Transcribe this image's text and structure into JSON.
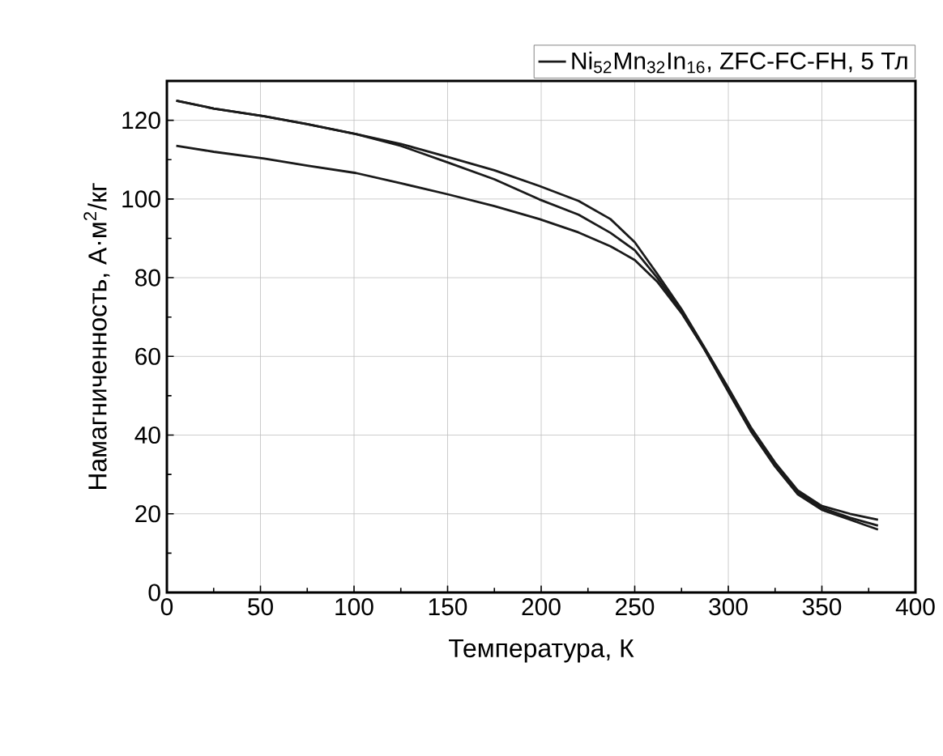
{
  "chart_data": {
    "type": "line",
    "xlabel": "Температура, К",
    "ylabel": "Намагниченность, А·м$^{2}$/кг",
    "xlim": [
      0,
      400
    ],
    "ylim": [
      0,
      130
    ],
    "xticks": [
      0,
      50,
      100,
      150,
      200,
      250,
      300,
      350,
      400
    ],
    "yticks": [
      0,
      20,
      40,
      60,
      80,
      100,
      120
    ],
    "grid": true,
    "legend": "top right",
    "line_style": "solid",
    "marker": "none",
    "series": [
      {
        "name": "Ni$_{52}$Mn$_{32}$In$_{16}$, ZFC-FC-FH, 5 Тл",
        "color": "#1a1a1a",
        "x": [
          5,
          25,
          52,
          75,
          101,
          125,
          150,
          175,
          199,
          220,
          237,
          250,
          262,
          275,
          287,
          300,
          312,
          325,
          337,
          350,
          365,
          380
        ],
        "values": [
          113.5,
          112,
          110.3,
          108.5,
          106.6,
          104,
          101.2,
          98.2,
          94.9,
          91.5,
          88,
          84.5,
          79,
          71,
          62,
          51,
          41,
          32,
          25,
          21,
          18.5,
          16
        ]
      },
      {
        "color": "#1a1a1a",
        "x": [
          5,
          25,
          52,
          75,
          101,
          125,
          150,
          175,
          199,
          220,
          237,
          250,
          262,
          275,
          287,
          300,
          312,
          325,
          337,
          350,
          365,
          380
        ],
        "values": [
          125,
          123,
          121,
          119,
          116.5,
          114,
          110.7,
          107.3,
          103.3,
          99.5,
          94.9,
          89,
          81,
          72,
          62.5,
          52,
          42,
          33,
          26,
          22,
          20,
          18.5
        ]
      },
      {
        "color": "#1a1a1a",
        "x": [
          5,
          25,
          52,
          75,
          101,
          125,
          150,
          175,
          199,
          220,
          237,
          250,
          262,
          275,
          287,
          300,
          312,
          325,
          337,
          350,
          365,
          380
        ],
        "values": [
          125,
          123,
          121,
          119,
          116.5,
          113.5,
          109.3,
          105,
          99.9,
          96,
          91.4,
          87,
          80,
          71.5,
          62,
          51.5,
          41.5,
          32.5,
          25.5,
          21.5,
          19,
          17
        ]
      }
    ]
  }
}
